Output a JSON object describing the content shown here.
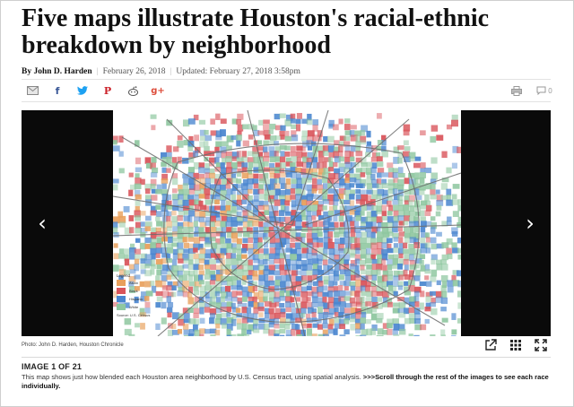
{
  "article": {
    "headline": "Five maps illustrate Houston's racial-ethnic breakdown by neighborhood",
    "byline": {
      "author": "By John D. Harden",
      "published": "February 26, 2018",
      "updated": "Updated: February 27, 2018 3:58pm"
    },
    "comment_count": "0"
  },
  "share_icons": [
    "mail-icon",
    "facebook-icon",
    "twitter-icon",
    "pinterest-icon",
    "reddit-icon",
    "google-plus-icon"
  ],
  "share_glyphs": {
    "facebook": "f",
    "pinterest": "P",
    "google_plus": "g+"
  },
  "colors": {
    "facebook": "#3b5998",
    "twitter": "#1da1f2",
    "pinterest": "#cb2027",
    "reddit": "#555555",
    "google_plus": "#dd4b39",
    "asian": "#e8a05c",
    "black": "#d9545a",
    "hispanic": "#4a86cf",
    "white": "#8fc7a0"
  },
  "gallery": {
    "prev_arrow": "‹",
    "next_arrow": "›",
    "legend": {
      "title": "Legend",
      "items": [
        {
          "label": "Asian",
          "color": "#e8a05c"
        },
        {
          "label": "Black",
          "color": "#d9545a"
        },
        {
          "label": "Hispanic",
          "color": "#4a86cf"
        },
        {
          "label": "White",
          "color": "#8fc7a0"
        }
      ],
      "source": "Source: U.S. Census"
    },
    "photo_credit": "Photo: John D. Harden, Houston Chronicle",
    "image_counter": "IMAGE 1 OF 21",
    "description": "This map shows just how blended each Houston area neighborhood by U.S. Census tract, using spatial analysis.",
    "description_cta": ">>>Scroll through the rest of the images to see each race individually."
  }
}
